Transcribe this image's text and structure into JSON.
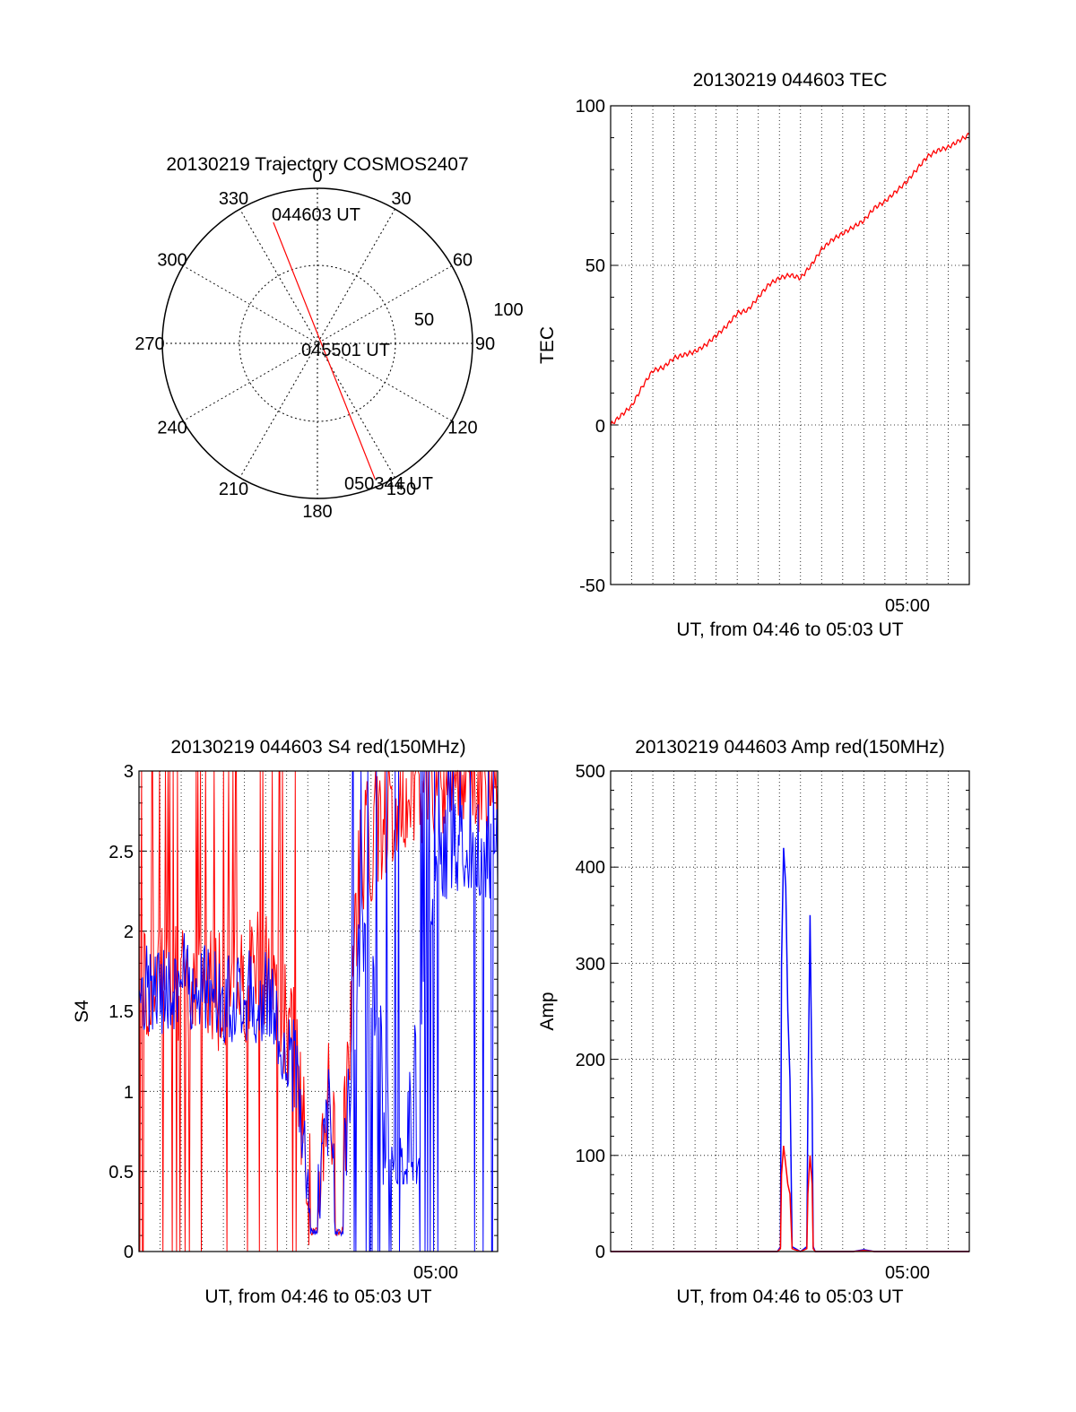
{
  "colors": {
    "red": "#ff0000",
    "blue": "#0000ff",
    "axis": "#000000"
  },
  "polar": {
    "title": "20130219 Trajectory COSMOS2407",
    "angle_labels": [
      "0",
      "30",
      "60",
      "90",
      "120",
      "150",
      "180",
      "210",
      "240",
      "270",
      "300",
      "330"
    ],
    "radial_labels": [
      "50",
      "100"
    ],
    "time_labels": {
      "start": "044603 UT",
      "mid": "045501 UT",
      "end": "050344 UT"
    },
    "trajectory": {
      "start": {
        "azimuth": 340,
        "zenith_distance": 83
      },
      "end": {
        "azimuth": 157,
        "zenith_distance": 95
      }
    }
  },
  "chart_data": [
    {
      "type": "line",
      "title": "20130219 044603 TEC",
      "xlabel": "UT, from 04:46 to 05:03 UT",
      "ylabel": "TEC",
      "x_tick_label": "05:00",
      "ylim": [
        -50,
        100
      ],
      "yticks": [
        "100",
        "50",
        "0",
        "-50"
      ],
      "grid": true,
      "series": [
        {
          "color": "red",
          "x": [
            0,
            0.5,
            1,
            1.5,
            2,
            2.5,
            3,
            3.5,
            4,
            4.5,
            5,
            5.5,
            6,
            6.5,
            7,
            7.5,
            8,
            8.5,
            9,
            9.5,
            10,
            10.5,
            11,
            11.5,
            12,
            12.5,
            13,
            13.5,
            14,
            14.5,
            15,
            15.5,
            16,
            16.5,
            17
          ],
          "values": [
            0,
            3,
            6,
            12,
            17,
            18,
            21,
            22,
            23,
            25,
            28,
            31,
            35,
            36,
            40,
            44,
            46,
            47,
            46,
            50,
            55,
            58,
            60,
            62,
            64,
            68,
            70,
            73,
            76,
            80,
            84,
            86,
            87,
            89,
            91
          ]
        }
      ]
    },
    {
      "type": "line",
      "title": "20130219 044603 S4 red(150MHz)",
      "xlabel": "UT, from 04:46 to 05:03 UT",
      "ylabel": "S4",
      "x_tick_label": "05:00",
      "ylim": [
        0,
        3
      ],
      "yticks": [
        "3",
        "2.5",
        "2",
        "1.5",
        "1",
        "0.5",
        "0"
      ],
      "grid": true,
      "series": [
        {
          "color": "red",
          "x_range": [
            0,
            17
          ],
          "n": 240,
          "description_values": "noisy 1.0-2.2, frequent spikes to 3 and 0; dips to 0.1 near 8.3 and 9.5; saturated 3 after 12"
        },
        {
          "color": "blue",
          "x_range": [
            0,
            17
          ],
          "n": 240,
          "description_values": "noisy 1.3-2.0 until 7.5; dips near 0.1 at 8.3 and 9.5; ~0.5 around 12.5; spikes 0-3 after 10"
        }
      ],
      "key_points": {
        "x": [
          0,
          2,
          4,
          6,
          7.5,
          8.3,
          9,
          9.5,
          10.5,
          12.5,
          14,
          17
        ],
        "red": [
          1.6,
          1.7,
          1.6,
          1.8,
          1.2,
          0.1,
          1.1,
          0.1,
          2.5,
          2.8,
          3,
          3
        ],
        "blue": [
          1.6,
          1.7,
          1.6,
          1.6,
          1.1,
          0.1,
          0.9,
          0.1,
          2.0,
          0.5,
          2.5,
          2.5
        ]
      }
    },
    {
      "type": "line",
      "title": "20130219 044603 Amp red(150MHz)",
      "xlabel": "UT, from 04:46 to 05:03 UT",
      "ylabel": "Amp",
      "x_tick_label": "05:00",
      "ylim": [
        0,
        500
      ],
      "yticks": [
        "500",
        "400",
        "300",
        "200",
        "100",
        "0"
      ],
      "grid": true,
      "series": [
        {
          "color": "blue",
          "x": [
            0,
            7.9,
            8.05,
            8.1,
            8.2,
            8.3,
            8.4,
            8.5,
            8.6,
            9.0,
            9.3,
            9.35,
            9.45,
            9.55,
            9.6,
            9.7,
            11.5,
            12,
            12.5,
            17
          ],
          "values": [
            0,
            0,
            5,
            300,
            420,
            380,
            250,
            180,
            5,
            0,
            5,
            150,
            350,
            160,
            5,
            0,
            0,
            2,
            0,
            0
          ]
        },
        {
          "color": "red",
          "x": [
            0,
            7.9,
            8.05,
            8.1,
            8.2,
            8.3,
            8.4,
            8.5,
            8.6,
            9.0,
            9.3,
            9.35,
            9.45,
            9.55,
            9.6,
            9.7,
            11.5,
            12,
            12.5,
            17
          ],
          "values": [
            0,
            0,
            3,
            80,
            110,
            90,
            70,
            60,
            3,
            0,
            3,
            60,
            100,
            70,
            3,
            0,
            0,
            1,
            0,
            0
          ]
        }
      ]
    }
  ]
}
